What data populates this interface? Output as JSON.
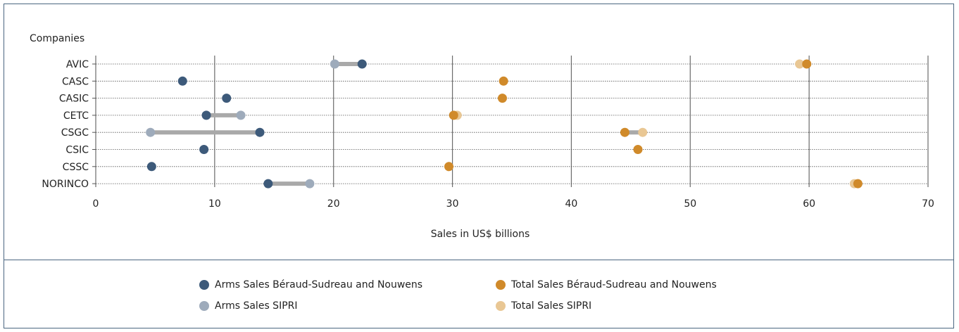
{
  "chart_data": {
    "type": "dumbbell",
    "ylabel": "Companies",
    "xlabel": "Sales in US$ billions",
    "xlim": [
      0,
      70
    ],
    "xticks": [
      0,
      10,
      20,
      30,
      40,
      50,
      60,
      70
    ],
    "categories": [
      "AVIC",
      "CASC",
      "CASIC",
      "CETC",
      "CSGC",
      "CSIC",
      "CSSC",
      "NORINCO"
    ],
    "series": [
      {
        "name": "Arms Sales Béraud-Sudreau and Nouwens",
        "color": "#3d5a7a",
        "values": [
          22.4,
          7.3,
          11.0,
          9.3,
          13.8,
          9.1,
          4.7,
          14.5
        ]
      },
      {
        "name": "Arms Sales SIPRI",
        "color": "#9eabbb",
        "values": [
          20.1,
          null,
          null,
          12.2,
          4.6,
          null,
          null,
          18.0
        ]
      },
      {
        "name": "Total Sales Béraud-Sudreau and Nouwens",
        "color": "#d08a2a",
        "values": [
          59.8,
          34.3,
          34.2,
          30.1,
          44.5,
          45.6,
          29.7,
          64.1
        ]
      },
      {
        "name": "Total Sales SIPRI",
        "color": "#e9c794",
        "values": [
          59.2,
          null,
          null,
          30.4,
          46.0,
          null,
          null,
          63.8
        ]
      }
    ],
    "connectors": [
      {
        "from": "Arms Sales Béraud-Sudreau and Nouwens",
        "to": "Arms Sales SIPRI"
      },
      {
        "from": "Total Sales Béraud-Sudreau and Nouwens",
        "to": "Total Sales SIPRI"
      }
    ],
    "connector_color": "#a9a9a9",
    "legend_position": "bottom"
  }
}
